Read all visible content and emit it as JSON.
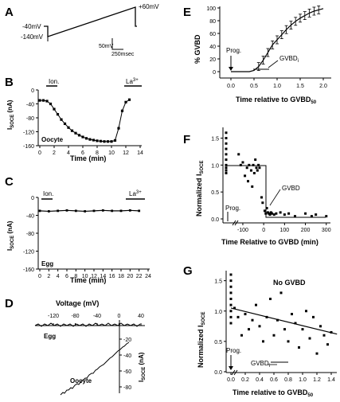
{
  "panels": {
    "A": {
      "letter": "A",
      "v_top_left": "-40mV",
      "v_bottom_left": "-140mV",
      "v_right": "+60mV",
      "scale_v": "50mV",
      "scale_t": "250msec"
    },
    "B": {
      "letter": "B",
      "ylabel_main": "I",
      "ylabel_sub": "SOCE",
      "ylabel_unit": "(nA)",
      "xlabel": "Time (min)",
      "inset": "Oocyte",
      "bar_left": "Ion.",
      "bar_right_base": "La",
      "bar_right_sup": "3+",
      "xticks": [
        "0",
        "2",
        "4",
        "6",
        "8",
        "10",
        "12",
        "14"
      ],
      "yticks": [
        "0",
        "-40",
        "-80",
        "-120",
        "-160"
      ]
    },
    "C": {
      "letter": "C",
      "ylabel_main": "I",
      "ylabel_sub": "SOCE",
      "ylabel_unit": "(nA)",
      "xlabel": "Time (min)",
      "inset": "Egg",
      "bar_left": "Ion.",
      "bar_right_base": "La",
      "bar_right_sup": "3+",
      "xticks": [
        "0",
        "2",
        "4",
        "6",
        "8",
        "10",
        "12",
        "14",
        "16",
        "18",
        "20",
        "22",
        "24"
      ],
      "yticks": [
        "0",
        "-40",
        "-80",
        "-120",
        "-160"
      ]
    },
    "D": {
      "letter": "D",
      "xlabel": "Voltage (mV)",
      "xticks": [
        "-120",
        "-80",
        "-40",
        "0",
        "40"
      ],
      "yticks": [
        "-20",
        "-40",
        "-60",
        "-80"
      ],
      "ylabel_main": "I",
      "ylabel_sub": "SOCE",
      "ylabel_unit": "(nA)",
      "egg": "Egg",
      "oocyte": "Oocyte"
    },
    "E": {
      "letter": "E",
      "ylabel": "% GVBD",
      "xlabel_main": "Time relative to GVBD",
      "xlabel_sub": "50",
      "xticks": [
        "0.0",
        "0.5",
        "1.0",
        "1.5",
        "2.0"
      ],
      "yticks": [
        "0",
        "20",
        "40",
        "60",
        "80",
        "100"
      ],
      "prog": "Prog.",
      "gvbd_main": "GVBD",
      "gvbd_sub": "i"
    },
    "F": {
      "letter": "F",
      "ylabel_main": "Normalized I",
      "ylabel_sub": "SOCE",
      "xlabel": "Time Relative to GVBD (min)",
      "xticks": [
        "-100",
        "0",
        "100",
        "200",
        "300"
      ],
      "yticks": [
        "0.0",
        "0.5",
        "1.0",
        "1.5"
      ],
      "prog": "Prog.",
      "gvbd": "GVBD"
    },
    "G": {
      "letter": "G",
      "ylabel_main": "Normalized I",
      "ylabel_sub": "SOCE",
      "xlabel_main": "Time relative to GVBD",
      "xlabel_sub": "50",
      "xticks": [
        "0.0",
        "0.2",
        "0.4",
        "0.6",
        "0.8",
        "1.0",
        "1.2",
        "1.4"
      ],
      "yticks": [
        "0.0",
        "0.5",
        "1.0",
        "1.5"
      ],
      "note": "No GVBD",
      "prog": "Prog.",
      "gvbd_main": "GVBD",
      "gvbd_sub": "i"
    }
  },
  "chart_data": [
    {
      "panel": "B",
      "type": "line",
      "xlabel": "Time (min)",
      "ylabel": "I SOCE (nA)",
      "xlim": [
        0,
        14
      ],
      "ylim": [
        -160,
        0
      ],
      "x": [
        0,
        0.5,
        1,
        1.5,
        2,
        2.5,
        3,
        3.5,
        4,
        4.5,
        5,
        5.5,
        6,
        6.5,
        7,
        7.5,
        8,
        8.5,
        9,
        9.5,
        10,
        10.5,
        11,
        11.5,
        12,
        12.5
      ],
      "y": [
        -30,
        -30,
        -32,
        -40,
        -55,
        -70,
        -85,
        -97,
        -108,
        -117,
        -124,
        -130,
        -135,
        -139,
        -142,
        -144,
        -146,
        -147,
        -148,
        -148,
        -148,
        -145,
        -110,
        -60,
        -35,
        -28
      ]
    },
    {
      "panel": "C",
      "type": "line",
      "xlabel": "Time (min)",
      "ylabel": "I SOCE (nA)",
      "xlim": [
        0,
        24
      ],
      "ylim": [
        -160,
        0
      ],
      "x": [
        0,
        2,
        4,
        6,
        8,
        10,
        12,
        14,
        16,
        18,
        20,
        22
      ],
      "y": [
        -30,
        -31,
        -30,
        -29,
        -30,
        -31,
        -30,
        -29,
        -30,
        -30,
        -29,
        -30
      ]
    },
    {
      "panel": "E",
      "type": "line",
      "xlabel": "Time relative to GVBD50",
      "ylabel": "% GVBD",
      "xlim": [
        -0.2,
        2.2
      ],
      "ylim": [
        0,
        100
      ],
      "x": [
        0.0,
        0.2,
        0.4,
        0.5,
        0.6,
        0.7,
        0.8,
        0.9,
        1.0,
        1.1,
        1.2,
        1.3,
        1.4,
        1.5,
        1.6,
        1.7,
        1.8,
        1.9,
        2.0
      ],
      "y": [
        0,
        0,
        0,
        2,
        8,
        18,
        30,
        42,
        50,
        58,
        66,
        73,
        79,
        84,
        88,
        92,
        95,
        97,
        99
      ]
    },
    {
      "panel": "F",
      "type": "scatter",
      "xlabel": "Time Relative to GVBD (min)",
      "ylabel": "Normalized I SOCE",
      "xlim": [
        -180,
        320
      ],
      "ylim": [
        0,
        1.7
      ],
      "x": [
        -180,
        -180,
        -180,
        -180,
        -180,
        -180,
        -180,
        -180,
        -180,
        -180,
        -120,
        -110,
        -100,
        -90,
        -80,
        -75,
        -70,
        -60,
        -55,
        -50,
        -45,
        -40,
        -35,
        -30,
        -25,
        -20,
        -10,
        -5,
        5,
        10,
        15,
        20,
        25,
        30,
        35,
        40,
        50,
        60,
        80,
        100,
        120,
        150,
        200,
        230,
        250,
        300
      ],
      "y": [
        1.6,
        1.5,
        1.4,
        1.3,
        1.2,
        1.1,
        1.0,
        0.95,
        0.9,
        0.85,
        1.2,
        1.0,
        1.05,
        0.8,
        0.95,
        0.7,
        1.0,
        0.9,
        0.6,
        1.0,
        0.85,
        1.1,
        0.95,
        0.9,
        1.0,
        0.95,
        0.4,
        0.3,
        0.15,
        0.1,
        0.2,
        0.12,
        0.1,
        0.08,
        0.12,
        0.1,
        0.08,
        0.1,
        0.12,
        0.08,
        0.1,
        0.05,
        0.1,
        0.05,
        0.08,
        0.05
      ]
    },
    {
      "panel": "G",
      "type": "scatter",
      "xlabel": "Time relative to GVBD50",
      "ylabel": "Normalized I SOCE",
      "xlim": [
        -0.05,
        1.45
      ],
      "ylim": [
        0,
        1.6
      ],
      "x": [
        0,
        0,
        0,
        0,
        0,
        0,
        0,
        0,
        0,
        0.05,
        0.1,
        0.15,
        0.2,
        0.25,
        0.3,
        0.35,
        0.4,
        0.45,
        0.5,
        0.55,
        0.6,
        0.65,
        0.7,
        0.75,
        0.8,
        0.85,
        0.9,
        0.95,
        1.0,
        1.05,
        1.1,
        1.15,
        1.2,
        1.25,
        1.3,
        1.35,
        1.4
      ],
      "y": [
        1.6,
        1.5,
        1.4,
        1.3,
        1.2,
        1.1,
        1.0,
        0.9,
        0.8,
        1.05,
        0.9,
        0.6,
        0.95,
        0.7,
        0.85,
        1.1,
        0.75,
        0.5,
        0.9,
        1.2,
        0.6,
        0.85,
        1.3,
        0.7,
        0.5,
        0.95,
        0.8,
        0.4,
        0.7,
        1.0,
        0.55,
        0.9,
        0.3,
        0.75,
        0.6,
        0.45,
        0.65
      ]
    }
  ]
}
